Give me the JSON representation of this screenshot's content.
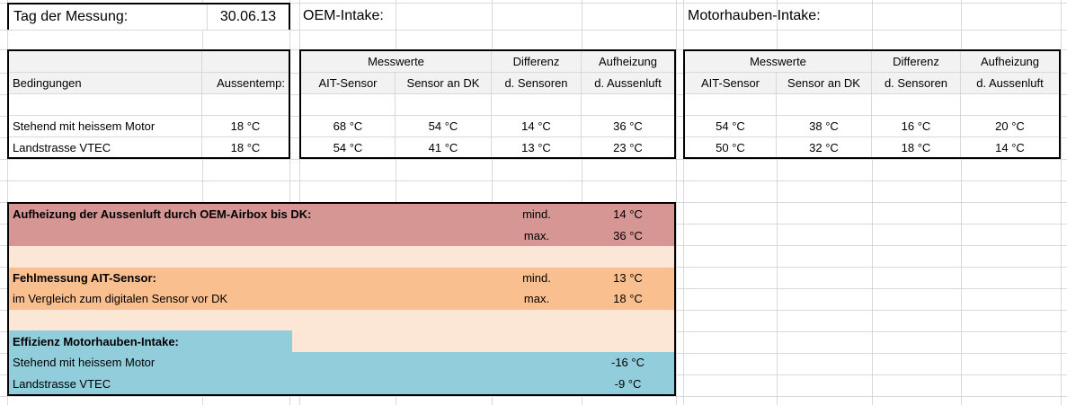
{
  "header": {
    "date_label": "Tag der Messung:",
    "date_value": "30.06.13",
    "oem_title": "OEM-Intake:",
    "hood_title": "Motorhauben-Intake:"
  },
  "conditions_table": {
    "headers": {
      "conditions": "Bedingungen",
      "outside_temp": "Aussentemp:"
    },
    "rows": [
      {
        "label": "Stehend mit heissem Motor",
        "temp": "18 °C"
      },
      {
        "label": "Landstrasse VTEC",
        "temp": "18 °C"
      }
    ]
  },
  "oem_table": {
    "group_headers": {
      "messwerte": "Messwerte",
      "differenz": "Differenz",
      "aufheizung": "Aufheizung"
    },
    "col_headers": {
      "ait": "AIT-Sensor",
      "dk": "Sensor an DK",
      "diff": "d. Sensoren",
      "heat": "d. Aussenluft"
    },
    "rows": [
      {
        "ait": "68 °C",
        "dk": "54 °C",
        "diff": "14 °C",
        "heat": "36 °C"
      },
      {
        "ait": "54 °C",
        "dk": "41 °C",
        "diff": "13 °C",
        "heat": "23 °C"
      }
    ]
  },
  "hood_table": {
    "group_headers": {
      "messwerte": "Messwerte",
      "differenz": "Differenz",
      "aufheizung": "Aufheizung"
    },
    "col_headers": {
      "ait": "AIT-Sensor",
      "dk": "Sensor an DK",
      "diff": "d. Sensoren",
      "heat": "d. Aussenluft"
    },
    "rows": [
      {
        "ait": "54 °C",
        "dk": "38 °C",
        "diff": "16 °C",
        "heat": "20 °C"
      },
      {
        "ait": "50 °C",
        "dk": "32 °C",
        "diff": "18 °C",
        "heat": "14 °C"
      }
    ]
  },
  "summary": {
    "airbox": {
      "title": "Aufheizung der Aussenluft durch OEM-Airbox bis DK:",
      "min_label": "mind.",
      "min_value": "14 °C",
      "max_label": "max.",
      "max_value": "36 °C"
    },
    "ait_error": {
      "title": "Fehlmessung AIT-Sensor:",
      "note": "im Vergleich zum digitalen Sensor vor DK",
      "min_label": "mind.",
      "min_value": "13 °C",
      "max_label": "max.",
      "max_value": "18 °C"
    },
    "efficiency": {
      "title": "Effizienz Motorhauben-Intake:",
      "rows": [
        {
          "label": "Stehend mit heissem Motor",
          "value": "-16 °C"
        },
        {
          "label": "Landstrasse VTEC",
          "value": "-9 °C"
        }
      ]
    }
  },
  "colors": {
    "rose": "#d59694",
    "orange": "#fabf8f",
    "peach": "#fce6d6",
    "blue": "#92cddc",
    "header_gray": "#f2f2f2",
    "gridline": "#d9d9d9",
    "border": "#000000"
  }
}
